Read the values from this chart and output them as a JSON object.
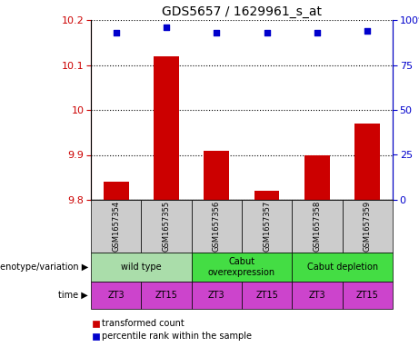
{
  "title": "GDS5657 / 1629961_s_at",
  "samples": [
    "GSM1657354",
    "GSM1657355",
    "GSM1657356",
    "GSM1657357",
    "GSM1657358",
    "GSM1657359"
  ],
  "bar_values": [
    9.84,
    10.12,
    9.91,
    9.82,
    9.9,
    9.97
  ],
  "dot_values": [
    93,
    96,
    93,
    93,
    93,
    94
  ],
  "ylim_left": [
    9.8,
    10.2
  ],
  "ylim_right": [
    0,
    100
  ],
  "yticks_left": [
    9.8,
    9.9,
    10.0,
    10.1,
    10.2
  ],
  "yticks_right": [
    0,
    25,
    50,
    75,
    100
  ],
  "bar_color": "#cc0000",
  "dot_color": "#0000cc",
  "bar_bottom": 9.8,
  "genotype_groups": [
    {
      "label": "wild type",
      "start": 0,
      "end": 2,
      "color": "#aaddaa"
    },
    {
      "label": "Cabut\noverexpression",
      "start": 2,
      "end": 4,
      "color": "#44dd44"
    },
    {
      "label": "Cabut depletion",
      "start": 4,
      "end": 6,
      "color": "#44dd44"
    }
  ],
  "time_labels": [
    "ZT3",
    "ZT15",
    "ZT3",
    "ZT15",
    "ZT3",
    "ZT15"
  ],
  "time_color": "#cc44cc",
  "legend_bar_label": "transformed count",
  "legend_dot_label": "percentile rank within the sample",
  "bar_label_color": "#cc0000",
  "dot_label_color": "#0000cc",
  "sample_box_color": "#cccccc",
  "genotype_label": "genotype/variation",
  "time_label": "time"
}
